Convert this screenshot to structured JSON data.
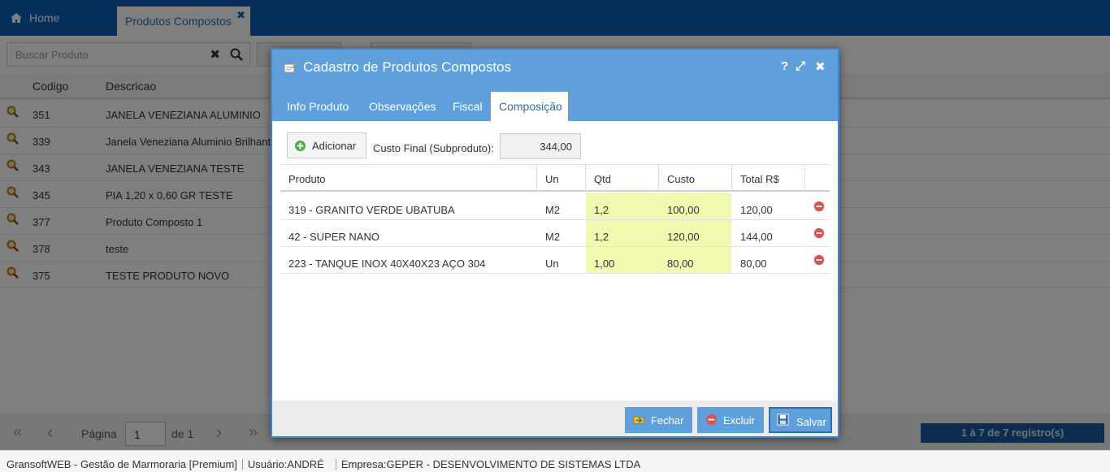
{
  "nav": {
    "home_label": "Home",
    "tab_label": "Produtos Compostos",
    "tab_close": "✖"
  },
  "search": {
    "placeholder": "Buscar Produto",
    "clear": "✖"
  },
  "grid": {
    "col_codigo": "Codigo",
    "col_descricao": "Descricao",
    "rows": [
      {
        "codigo": "351",
        "descricao": "JANELA VENEZIANA ALUMINIO"
      },
      {
        "codigo": "339",
        "descricao": "Janela Veneziana Aluminio Brilhante"
      },
      {
        "codigo": "343",
        "descricao": "JANELA VENEZIANA TESTE"
      },
      {
        "codigo": "345",
        "descricao": "PIA 1,20 x 0,60 GR TESTE"
      },
      {
        "codigo": "377",
        "descricao": "Produto Composto 1"
      },
      {
        "codigo": "378",
        "descricao": "teste"
      },
      {
        "codigo": "375",
        "descricao": "TESTE PRODUTO NOVO"
      }
    ]
  },
  "pager": {
    "first": "«",
    "prev": "‹",
    "page_label": "Página",
    "page_value": "1",
    "of_label": "de 1",
    "next": "›",
    "last": "»",
    "records": "1 à 7 de 7 registro(s)"
  },
  "status": {
    "app": "GransoftWEB - Gestão de Marmoraria [Premium]",
    "user_label": "Usuário:",
    "user": "ANDRÉ",
    "company_label": "Empresa:",
    "company": "GEPER - DESENVOLVIMENTO DE SISTEMAS LTDA"
  },
  "modal": {
    "title": "Cadastro de Produtos Compostos",
    "help": "?",
    "maximize": "⤢",
    "close": "✖",
    "tabs": [
      "Info Produto",
      "Observações",
      "Fiscal",
      "Composição"
    ],
    "active_tab": "Composição",
    "add_label": "Adicionar",
    "custo_label": "Custo Final (Subproduto):",
    "custo_value": "344,00",
    "columns": {
      "produto": "Produto",
      "un": "Un",
      "qtd": "Qtd",
      "custo": "Custo",
      "total": "Total R$"
    },
    "items": [
      {
        "produto": "319 - GRANITO VERDE UBATUBA",
        "un": "M2",
        "qtd": "1,2",
        "custo": "100,00",
        "total": "120,00"
      },
      {
        "produto": "42 - SUPER NANO",
        "un": "M2",
        "qtd": "1,2",
        "custo": "120,00",
        "total": "144,00"
      },
      {
        "produto": "223 - TANQUE INOX 40X40X23 AÇO 304",
        "un": "Un",
        "qtd": "1,00",
        "custo": "80,00",
        "total": "80,00"
      }
    ],
    "buttons": {
      "fechar": "Fechar",
      "excluir": "Excluir",
      "salvar": "Salvar"
    }
  },
  "colors": {
    "topbar": "#0a5eb5",
    "modal_header": "#5fa0dc",
    "highlight": "#f3f8b0",
    "delete": "#d9534f"
  }
}
